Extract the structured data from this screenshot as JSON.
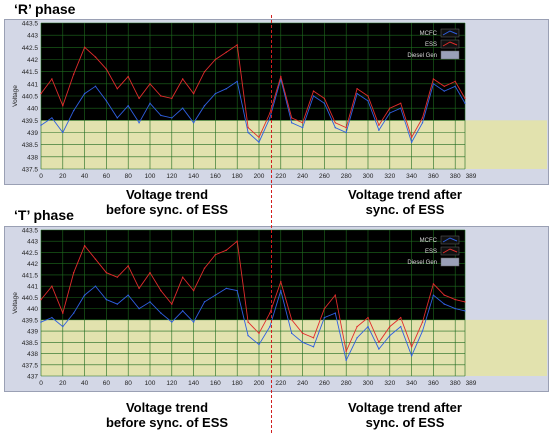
{
  "panels": [
    {
      "title": "‘R’ phase"
    },
    {
      "title": "‘T’ phase"
    }
  ],
  "captions": {
    "before": [
      "Voltage trend",
      "before sync. of ESS"
    ],
    "after": [
      "Voltage trend after",
      "sync. of ESS"
    ]
  },
  "colors": {
    "plot_bg": "#000000",
    "band": "#e2e2ae",
    "grid": "#1e6a1e",
    "mcfc": "#2f5fe0",
    "ess": "#e02c2c",
    "sync_marker": "#d02020"
  },
  "chart_data": [
    {
      "type": "line",
      "title": "‘R’ phase",
      "ylabel": "Voltage",
      "xlabel": "",
      "xlim": [
        0,
        389
      ],
      "ylim": [
        437.5,
        443.5
      ],
      "band_range": [
        437.5,
        439.5
      ],
      "xticks": [
        0,
        20,
        40,
        60,
        80,
        100,
        120,
        140,
        160,
        180,
        200,
        220,
        240,
        260,
        280,
        300,
        320,
        340,
        360,
        380,
        389
      ],
      "yticks": [
        437.5,
        438,
        438.5,
        439,
        439.5,
        440,
        440.5,
        441,
        441.5,
        442,
        442.5,
        443,
        443.5
      ],
      "legend": [
        "MCFC",
        "ESS",
        "Diesel Gen"
      ],
      "legend_position": "top-right",
      "grid": true,
      "series": [
        {
          "name": "MCFC",
          "x": [
            0,
            10,
            20,
            30,
            40,
            50,
            60,
            70,
            80,
            90,
            100,
            110,
            120,
            130,
            140,
            150,
            160,
            170,
            180,
            190,
            200,
            210,
            220,
            230,
            240,
            250,
            260,
            270,
            280,
            290,
            300,
            310,
            320,
            330,
            340,
            350,
            360,
            370,
            380,
            389
          ],
          "values": [
            439.3,
            439.6,
            439.0,
            439.9,
            440.6,
            440.9,
            440.3,
            439.6,
            440.1,
            439.4,
            440.2,
            439.7,
            439.6,
            440.0,
            439.4,
            440.1,
            440.6,
            440.8,
            441.1,
            439.0,
            438.6,
            439.6,
            441.2,
            439.4,
            439.2,
            440.5,
            440.2,
            439.2,
            439.0,
            440.6,
            440.3,
            439.1,
            439.8,
            440.0,
            438.6,
            439.4,
            441.0,
            440.7,
            440.9,
            440.2
          ]
        },
        {
          "name": "ESS",
          "x": [
            0,
            10,
            20,
            30,
            40,
            50,
            60,
            70,
            80,
            90,
            100,
            110,
            120,
            130,
            140,
            150,
            160,
            170,
            180,
            190,
            200,
            210,
            220,
            230,
            240,
            250,
            260,
            270,
            280,
            290,
            300,
            310,
            320,
            330,
            340,
            350,
            360,
            370,
            380,
            389
          ],
          "values": [
            440.6,
            441.2,
            440.1,
            441.4,
            442.5,
            442.1,
            441.6,
            440.8,
            441.3,
            440.4,
            441.0,
            440.5,
            440.4,
            441.2,
            440.6,
            441.5,
            442.0,
            442.3,
            442.6,
            439.2,
            438.8,
            439.8,
            441.3,
            439.6,
            439.4,
            440.7,
            440.4,
            439.4,
            439.2,
            440.8,
            440.5,
            439.3,
            440.0,
            440.2,
            438.8,
            439.6,
            441.2,
            440.9,
            441.1,
            440.4
          ]
        }
      ]
    },
    {
      "type": "line",
      "title": "‘T’ phase",
      "ylabel": "Voltage",
      "xlabel": "",
      "xlim": [
        0,
        389
      ],
      "ylim": [
        437,
        443.5
      ],
      "band_range": [
        437,
        439.5
      ],
      "xticks": [
        0,
        20,
        40,
        60,
        80,
        100,
        120,
        140,
        160,
        180,
        200,
        220,
        240,
        260,
        280,
        300,
        320,
        340,
        360,
        380,
        389
      ],
      "yticks": [
        437,
        437.5,
        438,
        438.5,
        439,
        439.5,
        440,
        440.5,
        441,
        441.5,
        442,
        442.5,
        443,
        443.5
      ],
      "legend": [
        "MCFC",
        "ESS",
        "Diesel Gen"
      ],
      "legend_position": "top-right",
      "grid": true,
      "series": [
        {
          "name": "MCFC",
          "x": [
            0,
            10,
            20,
            30,
            40,
            50,
            60,
            70,
            80,
            90,
            100,
            110,
            120,
            130,
            140,
            150,
            160,
            170,
            180,
            190,
            200,
            210,
            220,
            230,
            240,
            250,
            260,
            270,
            280,
            290,
            300,
            310,
            320,
            330,
            340,
            350,
            360,
            370,
            380,
            389
          ],
          "values": [
            439.4,
            439.6,
            439.2,
            439.8,
            440.6,
            441.0,
            440.4,
            440.2,
            440.6,
            440.0,
            440.3,
            439.8,
            439.4,
            439.9,
            439.4,
            440.3,
            440.6,
            440.9,
            440.8,
            438.8,
            438.4,
            439.2,
            440.8,
            438.9,
            438.5,
            438.3,
            439.6,
            439.8,
            437.7,
            438.7,
            439.2,
            438.2,
            438.8,
            439.2,
            437.9,
            439.0,
            440.6,
            440.2,
            440.0,
            439.9
          ]
        },
        {
          "name": "ESS",
          "x": [
            0,
            10,
            20,
            30,
            40,
            50,
            60,
            70,
            80,
            90,
            100,
            110,
            120,
            130,
            140,
            150,
            160,
            170,
            180,
            190,
            200,
            210,
            220,
            230,
            240,
            250,
            260,
            270,
            280,
            290,
            300,
            310,
            320,
            330,
            340,
            350,
            360,
            370,
            380,
            389
          ],
          "values": [
            440.4,
            441.0,
            439.8,
            441.6,
            442.8,
            442.2,
            441.6,
            441.4,
            441.9,
            440.9,
            441.6,
            440.8,
            440.2,
            441.4,
            440.8,
            441.8,
            442.4,
            442.6,
            443.0,
            439.4,
            438.9,
            439.8,
            441.2,
            439.5,
            438.9,
            438.7,
            440.0,
            440.6,
            438.1,
            439.2,
            439.6,
            438.5,
            439.2,
            439.6,
            438.3,
            439.4,
            441.1,
            440.6,
            440.4,
            440.3
          ]
        }
      ]
    }
  ]
}
